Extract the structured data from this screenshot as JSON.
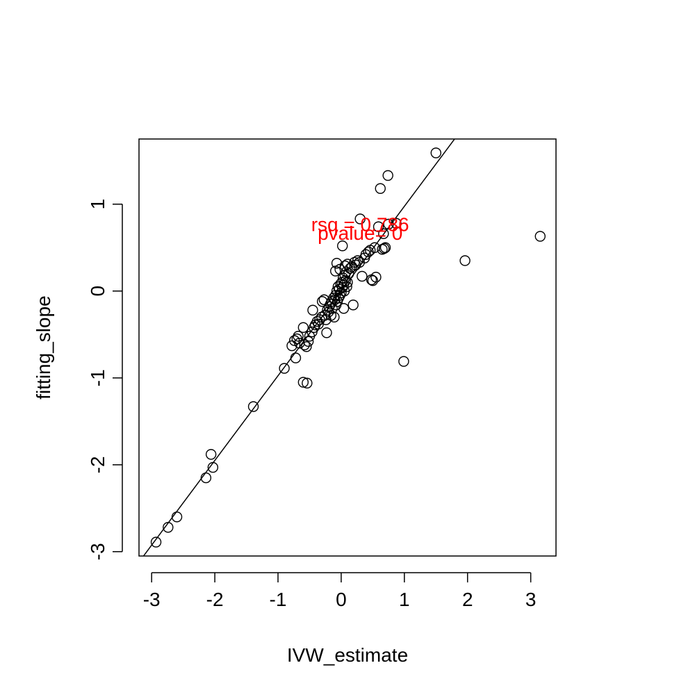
{
  "chart_data": {
    "type": "scatter",
    "title": "",
    "xlabel": "IVW_estimate",
    "ylabel": "fitting_slope",
    "xlim": [
      -3.2,
      3.4
    ],
    "ylim": [
      -3.05,
      1.75
    ],
    "xticks": [
      -3,
      -2,
      -1,
      0,
      1,
      2,
      3
    ],
    "xtick_labels": [
      "-3",
      "-2",
      "-1",
      "0",
      "1",
      "2",
      "3"
    ],
    "yticks": [
      -3,
      -2,
      -1,
      0,
      1
    ],
    "ytick_labels": [
      "-3",
      "-2",
      "-1",
      "0",
      "1"
    ],
    "grid": false,
    "fit_line": {
      "intercept": 0,
      "slope": 0.975
    },
    "annotations": [
      {
        "text": "rsq = 0.786",
        "x": 0.3,
        "y": 0.77,
        "color": "#ff0000"
      },
      {
        "text": "pvalue= 0",
        "x": 0.3,
        "y": 0.67,
        "color": "#ff0000"
      }
    ],
    "points": [
      [
        -2.93,
        -2.89
      ],
      [
        -2.74,
        -2.72
      ],
      [
        -2.6,
        -2.6
      ],
      [
        -2.14,
        -2.15
      ],
      [
        -2.06,
        -1.88
      ],
      [
        -2.03,
        -2.03
      ],
      [
        -1.39,
        -1.33
      ],
      [
        -0.9,
        -0.89
      ],
      [
        -0.6,
        -1.05
      ],
      [
        -0.54,
        -1.06
      ],
      [
        -0.72,
        -0.77
      ],
      [
        -0.78,
        -0.63
      ],
      [
        -0.74,
        -0.57
      ],
      [
        -0.7,
        -0.55
      ],
      [
        -0.68,
        -0.52
      ],
      [
        -0.66,
        -0.6
      ],
      [
        -0.6,
        -0.42
      ],
      [
        -0.58,
        -0.62
      ],
      [
        -0.55,
        -0.64
      ],
      [
        -0.52,
        -0.58
      ],
      [
        -0.5,
        -0.52
      ],
      [
        -0.46,
        -0.47
      ],
      [
        -0.43,
        -0.42
      ],
      [
        -0.41,
        -0.39
      ],
      [
        -0.38,
        -0.35
      ],
      [
        -0.36,
        -0.38
      ],
      [
        -0.34,
        -0.33
      ],
      [
        -0.31,
        -0.3
      ],
      [
        -0.3,
        -0.12
      ],
      [
        -0.27,
        -0.1
      ],
      [
        -0.26,
        -0.28
      ],
      [
        -0.24,
        -0.33
      ],
      [
        -0.22,
        -0.22
      ],
      [
        -0.2,
        -0.24
      ],
      [
        -0.23,
        -0.48
      ],
      [
        -0.45,
        -0.22
      ],
      [
        -0.19,
        -0.18
      ],
      [
        -0.17,
        -0.15
      ],
      [
        -0.16,
        -0.28
      ],
      [
        -0.15,
        -0.12
      ],
      [
        -0.14,
        -0.2
      ],
      [
        -0.12,
        -0.08
      ],
      [
        -0.11,
        -0.3
      ],
      [
        -0.1,
        -0.1
      ],
      [
        -0.09,
        -0.05
      ],
      [
        -0.08,
        -0.16
      ],
      [
        -0.07,
        0.0
      ],
      [
        -0.06,
        -0.12
      ],
      [
        -0.05,
        0.05
      ],
      [
        -0.04,
        -0.08
      ],
      [
        -0.03,
        0.02
      ],
      [
        -0.02,
        -0.05
      ],
      [
        -0.01,
        0.08
      ],
      [
        0.0,
        -0.02
      ],
      [
        0.01,
        0.1
      ],
      [
        0.02,
        0.04
      ],
      [
        0.03,
        0.15
      ],
      [
        0.04,
        0.07
      ],
      [
        0.05,
        0.0
      ],
      [
        0.06,
        0.18
      ],
      [
        0.07,
        0.12
      ],
      [
        0.08,
        0.22
      ],
      [
        0.09,
        0.05
      ],
      [
        0.1,
        0.1
      ],
      [
        -0.02,
        0.25
      ],
      [
        -0.09,
        0.23
      ],
      [
        -0.07,
        0.32
      ],
      [
        0.04,
        -0.2
      ],
      [
        0.06,
        0.29
      ],
      [
        0.1,
        0.31
      ],
      [
        0.12,
        0.2
      ],
      [
        0.14,
        0.26
      ],
      [
        0.17,
        0.28
      ],
      [
        0.19,
        -0.16
      ],
      [
        0.21,
        0.33
      ],
      [
        0.23,
        0.3
      ],
      [
        0.26,
        0.35
      ],
      [
        0.29,
        0.33
      ],
      [
        0.33,
        0.17
      ],
      [
        0.37,
        0.38
      ],
      [
        0.39,
        0.42
      ],
      [
        0.43,
        0.45
      ],
      [
        0.46,
        0.47
      ],
      [
        0.48,
        0.13
      ],
      [
        0.5,
        0.12
      ],
      [
        0.53,
        0.5
      ],
      [
        0.55,
        0.16
      ],
      [
        0.59,
        0.74
      ],
      [
        0.65,
        0.48
      ],
      [
        0.68,
        0.49
      ],
      [
        0.7,
        0.5
      ],
      [
        0.67,
        0.66
      ],
      [
        0.3,
        0.83
      ],
      [
        0.75,
        0.77
      ],
      [
        0.87,
        0.78
      ],
      [
        0.02,
        0.52
      ],
      [
        0.62,
        1.18
      ],
      [
        0.74,
        1.33
      ],
      [
        1.5,
        1.59
      ],
      [
        0.99,
        -0.81
      ],
      [
        1.96,
        0.35
      ],
      [
        3.15,
        0.63
      ]
    ]
  }
}
